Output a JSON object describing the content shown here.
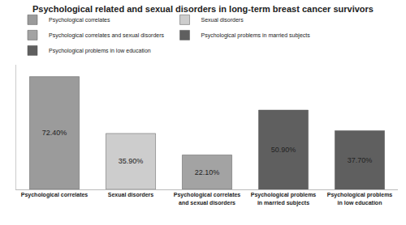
{
  "chart_data": {
    "type": "bar",
    "title": "Psychological related and sexual disorders in long-term breast cancer survivors",
    "categories": [
      "Psychological correlates",
      "Sexual disorders",
      "Psychological correlates and sexual disorders",
      "Psychological problems in married subjects",
      "Psychological problems in low education"
    ],
    "values": [
      72.4,
      35.9,
      22.1,
      50.9,
      37.7
    ],
    "value_labels": [
      "72.40%",
      "35.90%",
      "22.10%",
      "50.90%",
      "37.70%"
    ],
    "colors": [
      "#9b9b9b",
      "#cdcdcd",
      "#a3a3a3",
      "#5f5f5f",
      "#5f5f5f"
    ],
    "ylim": [
      0,
      80
    ],
    "data_labels": true,
    "tick_labels": "x",
    "legend": "top",
    "grid": false
  }
}
